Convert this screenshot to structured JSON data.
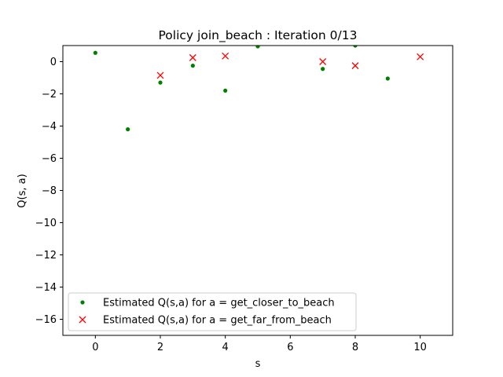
{
  "chart_data": {
    "type": "scatter",
    "title": "Policy join_beach : Iteration 0/13",
    "xlabel": "s",
    "ylabel": "Q(s, a)",
    "xlim": [
      -1,
      11
    ],
    "ylim": [
      -17,
      1
    ],
    "xticks": [
      0,
      2,
      4,
      6,
      8,
      10
    ],
    "yticks": [
      0,
      -2,
      -4,
      -6,
      -8,
      -10,
      -12,
      -14,
      -16
    ],
    "grid": false,
    "legend_position": "lower-left",
    "series": [
      {
        "name": "Estimated Q(s,a) for a = get_closer_to_beach",
        "marker": "dot",
        "color": "#008000",
        "points": [
          {
            "x": 0,
            "y": 0.55
          },
          {
            "x": 1,
            "y": -4.2
          },
          {
            "x": 2,
            "y": -1.3
          },
          {
            "x": 3,
            "y": -0.25
          },
          {
            "x": 4,
            "y": -1.8
          },
          {
            "x": 5,
            "y": 0.95
          },
          {
            "x": 7,
            "y": -0.45
          },
          {
            "x": 8,
            "y": 1.0
          },
          {
            "x": 9,
            "y": -1.05
          }
        ]
      },
      {
        "name": "Estimated Q(s,a) for a = get_far_from_beach",
        "marker": "x",
        "color": "#ff0000",
        "points": [
          {
            "x": 2,
            "y": -0.85
          },
          {
            "x": 3,
            "y": 0.25
          },
          {
            "x": 4,
            "y": 0.35
          },
          {
            "x": 7,
            "y": 0.0
          },
          {
            "x": 8,
            "y": -0.25
          },
          {
            "x": 10,
            "y": 0.3
          }
        ]
      }
    ]
  }
}
